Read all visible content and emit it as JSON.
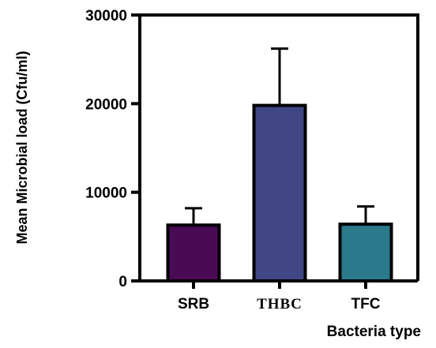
{
  "chart_data": {
    "type": "bar",
    "title": "",
    "xlabel": "Bacteria type",
    "ylabel": "Mean Microbial load (Cfu/ml)",
    "categories": [
      "SRB",
      "THBC",
      "TFC"
    ],
    "values": [
      6300,
      19800,
      6400
    ],
    "error_upper": [
      8200,
      26200,
      8400
    ],
    "bar_colors": [
      "#4a0a55",
      "#414684",
      "#2a7a8c"
    ],
    "ylim": [
      0,
      30000
    ],
    "yticks": [
      0,
      10000,
      20000,
      30000
    ],
    "ytick_labels": [
      "0",
      "10000",
      "20000",
      "30000"
    ],
    "grid": false,
    "legend": "none"
  }
}
